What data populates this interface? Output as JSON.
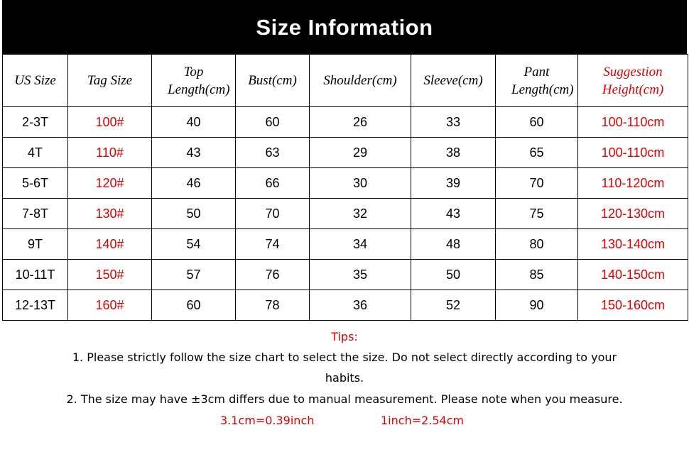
{
  "title": "Size Information",
  "headers": [
    "US Size",
    "Tag Size",
    "Top Length(cm)",
    "Bust(cm)",
    "Shoulder(cm)",
    "Sleeve(cm)",
    "Pant Length(cm)",
    "Suggestion Height(cm)"
  ],
  "rows": [
    [
      "2-3T",
      "100#",
      "40",
      "60",
      "26",
      "33",
      "60",
      "100-110cm"
    ],
    [
      "4T",
      "110#",
      "43",
      "63",
      "29",
      "38",
      "65",
      "100-110cm"
    ],
    [
      "5-6T",
      "120#",
      "46",
      "66",
      "30",
      "39",
      "70",
      "110-120cm"
    ],
    [
      "7-8T",
      "130#",
      "50",
      "70",
      "32",
      "43",
      "75",
      "120-130cm"
    ],
    [
      "9T",
      "140#",
      "54",
      "74",
      "34",
      "48",
      "80",
      "130-140cm"
    ],
    [
      "10-11T",
      "150#",
      "57",
      "76",
      "35",
      "50",
      "85",
      "140-150cm"
    ],
    [
      "12-13T",
      "160#",
      "60",
      "78",
      "36",
      "52",
      "90",
      "150-160cm"
    ]
  ],
  "tips": {
    "heading": "Tips:",
    "line1": "1. Please strictly follow the size chart  to select the size. Do not select directly according to your",
    "line1b": "habits.",
    "line2": "2. The size may have ±3cm differs due to manual measurement. Please note when you measure.",
    "conv1": "3.1cm=0.39inch",
    "conv2": "1inch=2.54cm"
  },
  "colors": {
    "accent": "#e00000",
    "header_bg": "#000000"
  }
}
